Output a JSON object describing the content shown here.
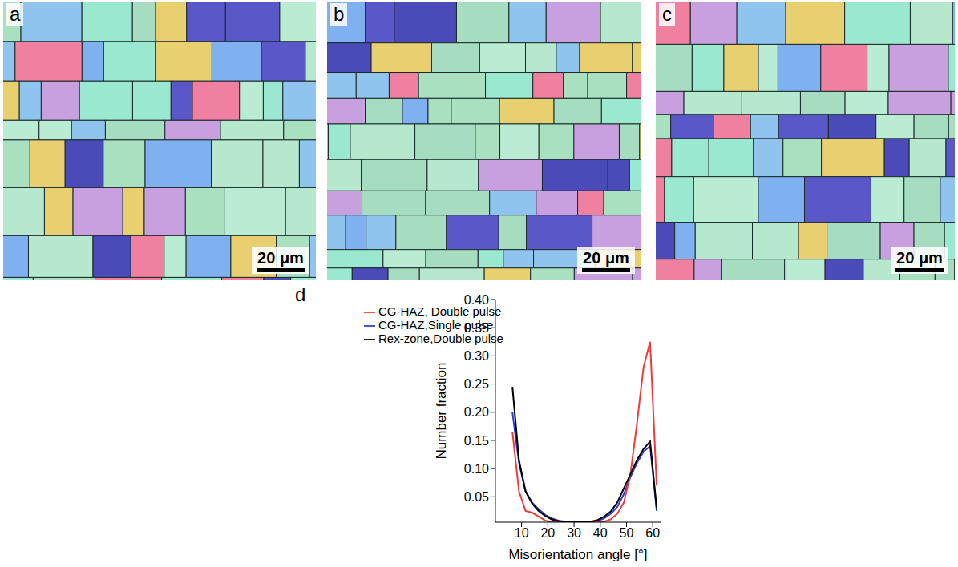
{
  "panels": [
    {
      "label": "a",
      "scale_bar": "20 μm"
    },
    {
      "label": "b",
      "scale_bar": "20 μm"
    },
    {
      "label": "c",
      "scale_bar": "20 μm"
    }
  ],
  "chart_data": {
    "type": "line",
    "panel_label": "d",
    "x_label": "Misorientation angle [°]",
    "y_label": "Number fraction",
    "x": [
      6.5,
      9,
      11.5,
      14,
      16.5,
      19,
      21.5,
      24,
      26.5,
      29,
      31.5,
      34,
      36.5,
      39,
      41.5,
      44,
      46.5,
      49,
      51.5,
      54,
      56.5,
      59,
      61.5
    ],
    "series": [
      {
        "name": "CG-HAZ,Single pulse",
        "color": "#2b3bd1",
        "values": [
          0.2,
          0.11,
          0.06,
          0.04,
          0.028,
          0.018,
          0.012,
          0.008,
          0.006,
          0.005,
          0.005,
          0.005,
          0.005,
          0.007,
          0.012,
          0.02,
          0.032,
          0.055,
          0.085,
          0.11,
          0.13,
          0.14,
          0.025
        ]
      },
      {
        "name": "CG-HAZ, Double pulse",
        "color": "#ee3b3b",
        "values": [
          0.165,
          0.06,
          0.025,
          0.022,
          0.015,
          0.008,
          0.005,
          0.005,
          0.005,
          0.005,
          0.005,
          0.005,
          0.005,
          0.005,
          0.006,
          0.01,
          0.02,
          0.04,
          0.09,
          0.18,
          0.28,
          0.325,
          0.07
        ]
      },
      {
        "name": "Rex-zone,Double pulse",
        "color": "#000000",
        "values": [
          0.245,
          0.115,
          0.06,
          0.038,
          0.025,
          0.016,
          0.01,
          0.007,
          0.005,
          0.005,
          0.005,
          0.005,
          0.006,
          0.009,
          0.015,
          0.024,
          0.04,
          0.065,
          0.09,
          0.115,
          0.135,
          0.148,
          0.03
        ]
      }
    ],
    "xlim": [
      0,
      63
    ],
    "xticks": [
      10,
      20,
      30,
      40,
      50,
      60
    ],
    "ylim": [
      0.005,
      0.4
    ],
    "yticks": [
      0.05,
      {
        "value": 0.1,
        "label": "0.10"
      },
      0.15,
      {
        "value": 0.2,
        "label": "0.20"
      },
      0.25,
      {
        "value": 0.3,
        "label": "0.30"
      },
      0.35,
      {
        "value": 0.4,
        "label": "0.40"
      }
    ],
    "legend": "upper left"
  }
}
